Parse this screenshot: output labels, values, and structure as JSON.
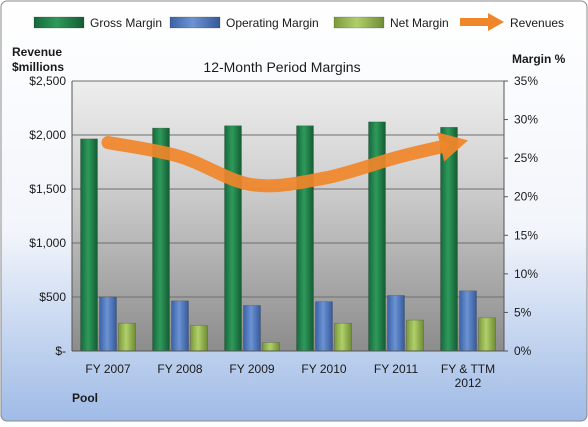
{
  "chart_data": {
    "type": "bar",
    "title": "12-Month Period Margins",
    "company": "Pool",
    "y_left_label": [
      "Revenue",
      "$millions"
    ],
    "y_right_label": "Margin %",
    "categories": [
      [
        "FY 2007"
      ],
      [
        "FY 2008"
      ],
      [
        "FY 2009"
      ],
      [
        "FY 2010"
      ],
      [
        "FY 2011"
      ],
      [
        "FY & TTM",
        "2012"
      ]
    ],
    "y_left": {
      "min": 0,
      "max": 2500,
      "step": 500,
      "tick_labels": [
        "$-",
        "$500",
        "$1,000",
        "$1,500",
        "$2,000",
        "$2,500"
      ]
    },
    "y_right": {
      "min": 0,
      "max": 35,
      "step": 5,
      "tick_labels": [
        "0%",
        "5%",
        "10%",
        "15%",
        "20%",
        "25%",
        "30%",
        "35%"
      ]
    },
    "series": [
      {
        "name": "Gross Margin",
        "kind": "bar",
        "axis": "right",
        "color": "#1f7a45",
        "values": [
          27.5,
          28.9,
          29.2,
          29.2,
          29.7,
          29.0
        ]
      },
      {
        "name": "Operating Margin",
        "kind": "bar",
        "axis": "right",
        "color": "#4a72b8",
        "values": [
          7.0,
          6.5,
          5.9,
          6.4,
          7.2,
          7.8
        ]
      },
      {
        "name": "Net Margin",
        "kind": "bar",
        "axis": "right",
        "color": "#8fb14a",
        "values": [
          3.6,
          3.3,
          1.1,
          3.6,
          4.0,
          4.3
        ]
      },
      {
        "name": "Revenues",
        "kind": "line",
        "axis": "left",
        "color": "#f0862a",
        "values": [
          1930,
          1800,
          1540,
          1600,
          1790,
          1950
        ]
      }
    ],
    "grid": true,
    "legend_position": "top"
  }
}
